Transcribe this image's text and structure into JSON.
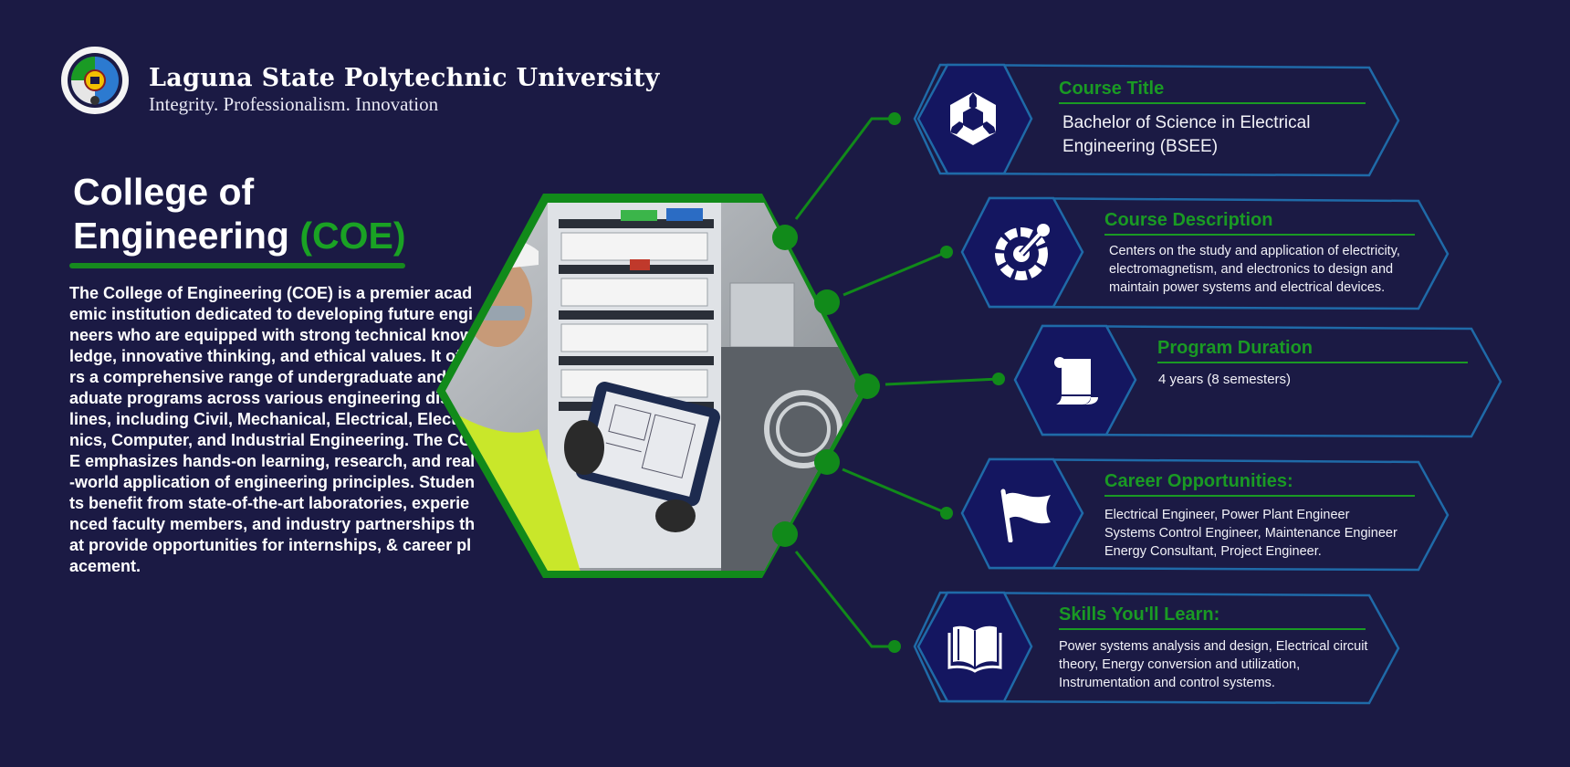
{
  "header": {
    "university": "Laguna State Polytechnic University",
    "motto": "Integrity. Professionalism. Innovation",
    "logo_icon": "university-seal-icon"
  },
  "college": {
    "title_line1": "College of",
    "title_line2": "Engineering",
    "title_accent": "(COE)",
    "description": "The College of Engineering (COE) is a premier academic institution dedicated to developing future engineers who are equipped with strong technical knowledge, innovative thinking, and ethical values. It offers a comprehensive range of undergraduate and graduate programs across various engineering disciplines, including Civil, Mechanical, Electrical, Electronics, Computer, and Industrial Engineering. The COE emphasizes hands-on learning, research, and real-world application of engineering principles. Students benefit from state-of-the-art laboratories, experienced faculty members, and industry partnerships that provide opportunities for internships, & career placement."
  },
  "colors": {
    "background": "#1b1a44",
    "accent_green": "#1a9a24",
    "card_border": "#1f6aa8",
    "icon_hex": "#141660"
  },
  "cards": [
    {
      "title": "Course Title",
      "body": "Bachelor of Science in Electrical Engineering (BSEE)",
      "icon": "unity-cube-icon"
    },
    {
      "title": "Course Description",
      "body": "Centers on the study and application of electricity, electromagnetism, and electronics to design and maintain power systems and electrical devices.",
      "icon": "dropper-gear-icon"
    },
    {
      "title": "Program Duration",
      "body": "4 years (8 semesters)",
      "icon": "scroll-icon"
    },
    {
      "title": "Career Opportunities:",
      "body_lines": [
        "Electrical Engineer, Power Plant Engineer",
        "Systems Control Engineer, Maintenance Engineer",
        "Energy Consultant, Project Engineer."
      ],
      "icon": "flag-icon"
    },
    {
      "title": "Skills You'll Learn:",
      "body": "Power systems analysis and design, Electrical circuit theory, Energy conversion and utilization, Instrumentation and control systems.",
      "icon": "open-book-icon"
    }
  ]
}
